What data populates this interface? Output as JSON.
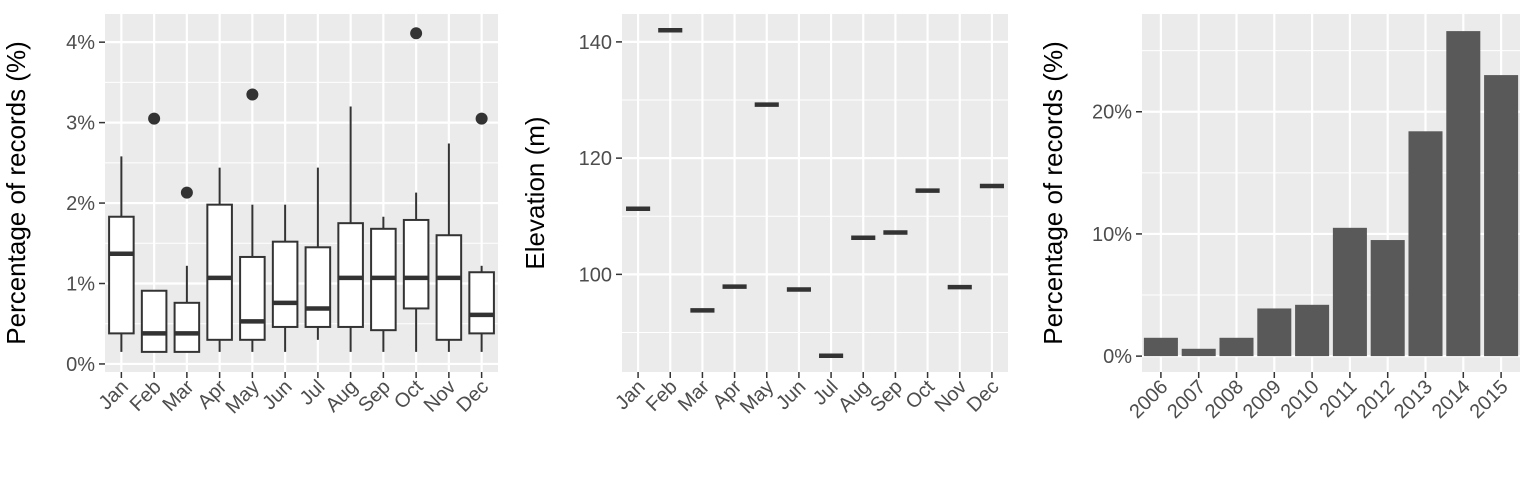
{
  "chart_data": [
    {
      "type": "box",
      "ylabel": "Percentage of records (%)",
      "xlabel": "",
      "categories": [
        "Jan",
        "Feb",
        "Mar",
        "Apr",
        "May",
        "Jun",
        "Jul",
        "Aug",
        "Sep",
        "Oct",
        "Nov",
        "Dec"
      ],
      "ylim": [
        -0.1,
        4.35
      ],
      "yticks": [
        0,
        1,
        2,
        3,
        4
      ],
      "ytick_labels": [
        "0%",
        "1%",
        "2%",
        "3%",
        "4%"
      ],
      "boxes": [
        {
          "min": 0.15,
          "q1": 0.38,
          "median": 1.37,
          "q3": 1.83,
          "max": 2.58,
          "outliers": []
        },
        {
          "min": 0.15,
          "q1": 0.15,
          "median": 0.38,
          "q3": 0.91,
          "max": 0.91,
          "outliers": [
            3.05
          ]
        },
        {
          "min": 0.15,
          "q1": 0.15,
          "median": 0.38,
          "q3": 0.76,
          "max": 1.22,
          "outliers": [
            2.13
          ]
        },
        {
          "min": 0.15,
          "q1": 0.3,
          "median": 1.07,
          "q3": 1.98,
          "max": 2.44,
          "outliers": []
        },
        {
          "min": 0.15,
          "q1": 0.3,
          "median": 0.53,
          "q3": 1.33,
          "max": 1.98,
          "outliers": [
            3.35
          ]
        },
        {
          "min": 0.15,
          "q1": 0.46,
          "median": 0.76,
          "q3": 1.52,
          "max": 1.98,
          "outliers": []
        },
        {
          "min": 0.3,
          "q1": 0.46,
          "median": 0.69,
          "q3": 1.45,
          "max": 2.44,
          "outliers": []
        },
        {
          "min": 0.15,
          "q1": 0.46,
          "median": 1.07,
          "q3": 1.75,
          "max": 3.2,
          "outliers": []
        },
        {
          "min": 0.15,
          "q1": 0.42,
          "median": 1.07,
          "q3": 1.68,
          "max": 1.83,
          "outliers": []
        },
        {
          "min": 0.15,
          "q1": 0.69,
          "median": 1.07,
          "q3": 1.79,
          "max": 2.13,
          "outliers": [
            4.11
          ]
        },
        {
          "min": 0.15,
          "q1": 0.3,
          "median": 1.07,
          "q3": 1.6,
          "max": 2.74,
          "outliers": []
        },
        {
          "min": 0.15,
          "q1": 0.38,
          "median": 0.61,
          "q3": 1.14,
          "max": 1.22,
          "outliers": [
            3.05
          ]
        }
      ],
      "grid": true
    },
    {
      "type": "line",
      "ylabel": "Elevation (m)",
      "xlabel": "",
      "categories": [
        "Jan",
        "Feb",
        "Mar",
        "Apr",
        "May",
        "Jun",
        "Jul",
        "Aug",
        "Sep",
        "Oct",
        "Nov",
        "Dec"
      ],
      "values": [
        111.3,
        142.0,
        93.8,
        97.9,
        129.2,
        97.4,
        86.0,
        106.3,
        107.2,
        114.4,
        97.8,
        115.2
      ],
      "ylim": [
        83.2,
        144.8
      ],
      "yticks": [
        100,
        120,
        140
      ],
      "ytick_labels": [
        "100",
        "120",
        "140"
      ],
      "grid": true
    },
    {
      "type": "bar",
      "ylabel": "Percentage of records (%)",
      "xlabel": "",
      "categories": [
        "2006",
        "2007",
        "2008",
        "2009",
        "2010",
        "2011",
        "2012",
        "2013",
        "2014",
        "2015"
      ],
      "values": [
        1.5,
        0.6,
        1.5,
        3.9,
        4.2,
        10.5,
        9.5,
        18.4,
        26.6,
        23.0
      ],
      "ylim": [
        -1.3,
        28.0
      ],
      "yticks": [
        0,
        10,
        20
      ],
      "ytick_labels": [
        "0%",
        "10%",
        "20%"
      ],
      "grid": true
    }
  ],
  "colors": {
    "panel_background": "#ebebeb",
    "grid": "#ffffff",
    "bar_fill": "#595959",
    "box_line": "#333333",
    "box_fill": "#ffffff",
    "median_line": "#333333",
    "point": "#333333",
    "tick_label": "#4d4d4d",
    "axis_title": "#000000"
  }
}
